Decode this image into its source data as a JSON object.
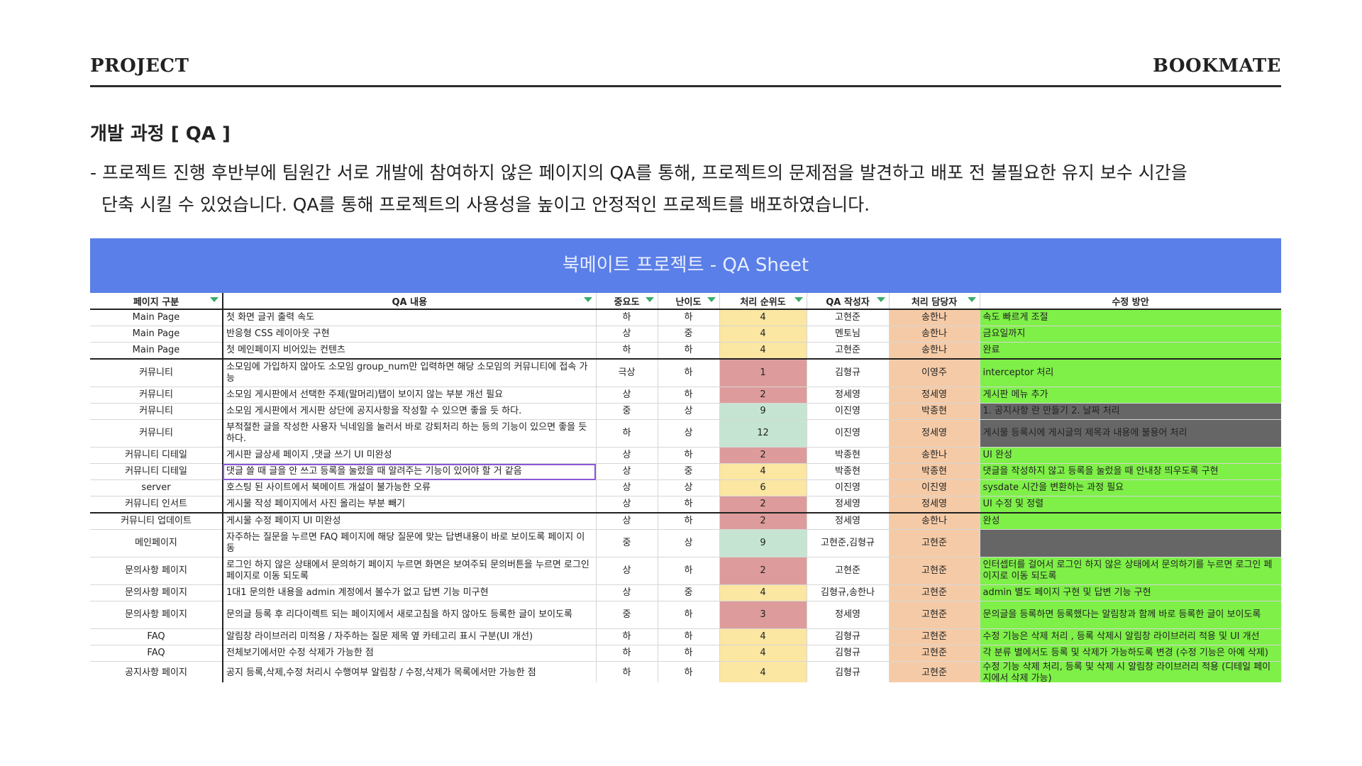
{
  "header": {
    "left": "PROJECT",
    "right": "BOOKMATE"
  },
  "section": {
    "title": "개발 과정 [ QA ]",
    "desc_line1": "- 프로젝트 진행 후반부에 팀원간 서로 개발에 참여하지 않은 페이지의 QA를 통해, 프로젝트의 문제점을 발견하고 배포 전 불필요한 유지 보수 시간을",
    "desc_line2": "단축 시킬 수 있었습니다. QA를 통해 프로젝트의 사용성을 높이고 안정적인 프로젝트를 배포하였습니다."
  },
  "sheet": {
    "title": "북메이트 프로젝트 - QA Sheet",
    "columns": [
      "페이지 구분",
      "QA 내용",
      "중요도",
      "난이도",
      "처리 순위도",
      "QA 작성자",
      "처리 담당자",
      "수정 방안"
    ],
    "colors": {
      "banner": "#5b7fe8",
      "priority_red": "#dd9c9b",
      "priority_yellow": "#fbe6a2",
      "priority_mint": "#c5e5d2",
      "owner": "#f5cba7",
      "fix_green": "#7ef048",
      "fix_dark": "#666666",
      "filter_icon": "#3bab6a",
      "selection": "#8a57d6"
    },
    "rows": [
      {
        "page": "Main Page",
        "content": "첫 화면 글귀 출력 속도",
        "importance": "하",
        "difficulty": "하",
        "priority": "4",
        "pcolor": "yel",
        "author": "고현준",
        "owner": "송한나",
        "fix": "속도 빠르게 조절",
        "fcolor": "g",
        "tall": false,
        "sep": false
      },
      {
        "page": "Main Page",
        "content": "반응형 CSS 레이아웃 구현",
        "importance": "상",
        "difficulty": "중",
        "priority": "4",
        "pcolor": "yel",
        "author": "멘토님",
        "owner": "송한나",
        "fix": "금요일까지",
        "fcolor": "g",
        "tall": false,
        "sep": false
      },
      {
        "page": "Main Page",
        "content": "첫 메인페이지 비어있는 컨텐츠",
        "importance": "하",
        "difficulty": "하",
        "priority": "4",
        "pcolor": "yel",
        "author": "고현준",
        "owner": "송한나",
        "fix": "완료",
        "fcolor": "g",
        "tall": false,
        "sep": false
      },
      {
        "page": "커뮤니티",
        "content": "소모임에 가입하지 않아도 소모임 group_num만 입력하면 해당 소모임의 커뮤니티에 접속 가능",
        "importance": "극상",
        "difficulty": "하",
        "priority": "1",
        "pcolor": "red",
        "author": "김형규",
        "owner": "이영주",
        "fix": "interceptor 처리",
        "fcolor": "g",
        "tall": true,
        "sep": true
      },
      {
        "page": "커뮤니티",
        "content": "소모임 게시판에서 선택한 주제(말머리)탭이 보이지 않는 부분 개선 필요",
        "importance": "상",
        "difficulty": "하",
        "priority": "2",
        "pcolor": "red",
        "author": "정세영",
        "owner": "정세영",
        "fix": "게시판 메뉴 추가",
        "fcolor": "g",
        "tall": false,
        "sep": false
      },
      {
        "page": "커뮤니티",
        "content": "소모임 게시판에서 게시판 상단에 공지사항을 작성할 수 있으면 좋을 듯 하다.",
        "importance": "중",
        "difficulty": "상",
        "priority": "9",
        "pcolor": "mint",
        "author": "이진영",
        "owner": "박종현",
        "fix": "1. 공지사항 란 만들기 2. 날짜 처리",
        "fcolor": "d",
        "tall": false,
        "sep": false
      },
      {
        "page": "커뮤니티",
        "content": "부적절한 글을 작성한 사용자 닉네임을 눌러서 바로 강퇴처리 하는 등의 기능이 있으면 좋을 듯 하다.",
        "importance": "하",
        "difficulty": "상",
        "priority": "12",
        "pcolor": "mint",
        "author": "이진영",
        "owner": "정세영",
        "fix": "게시물 등록시에 게시글의 제목과 내용에 불용어 처리",
        "fcolor": "d",
        "tall": true,
        "sep": false
      },
      {
        "page": "커뮤니티 디테일",
        "content": "게시판 글상세 페이지 ,댓글 쓰기 UI 미완성",
        "importance": "상",
        "difficulty": "하",
        "priority": "2",
        "pcolor": "red",
        "author": "박종현",
        "owner": "송한나",
        "fix": "UI 완성",
        "fcolor": "g",
        "tall": false,
        "sep": false
      },
      {
        "page": "커뮤니티 디테일",
        "content": "댓글 쓸 때 글을 안 쓰고 등록을 눌렀을 때 알려주는 기능이 있어야 할 거 같음",
        "importance": "상",
        "difficulty": "중",
        "priority": "4",
        "pcolor": "yel",
        "author": "박종현",
        "owner": "박종현",
        "fix": "댓글을 작성하지 않고 등록을 눌렀을 때 안내창 띄우도록 구현",
        "fcolor": "g",
        "tall": false,
        "sep": false,
        "selected": true
      },
      {
        "page": "server",
        "content": "호스팅 된 사이트에서 북메이트 개설이 불가능한 오류",
        "importance": "상",
        "difficulty": "상",
        "priority": "6",
        "pcolor": "yel",
        "author": "이진영",
        "owner": "이진영",
        "fix": "sysdate 시간을 변환하는 과정 필요",
        "fcolor": "g",
        "tall": false,
        "sep": false
      },
      {
        "page": "커뮤니티 인서트",
        "content": "게시물 작성 페이지에서 사진 올리는 부분 빼기",
        "importance": "상",
        "difficulty": "하",
        "priority": "2",
        "pcolor": "red",
        "author": "정세영",
        "owner": "정세영",
        "fix": "UI 수정 및 정렬",
        "fcolor": "g",
        "tall": false,
        "sep": false
      },
      {
        "page": "커뮤니티 업데이트",
        "content": "게시물 수정 페이지 UI 미완성",
        "importance": "상",
        "difficulty": "하",
        "priority": "2",
        "pcolor": "red",
        "author": "정세영",
        "owner": "송한나",
        "fix": "완성",
        "fcolor": "g",
        "tall": false,
        "sep": true
      },
      {
        "page": "메인페이지",
        "content": "자주하는 질문을 누르면 FAQ 페이지에 해당 질문에 맞는 답변내용이 바로 보이도록 페이지 이동",
        "importance": "중",
        "difficulty": "상",
        "priority": "9",
        "pcolor": "mint",
        "author": "고현준,김형규",
        "owner": "고현준",
        "fix": "",
        "fcolor": "d",
        "tall": true,
        "sep": false
      },
      {
        "page": "문의사항 페이지",
        "content": "로그인 하지 않은 상태에서 문의하기 페이지 누르면 화면은 보여주되 문의버튼을 누르면 로그인 페이지로 이동 되도록",
        "importance": "상",
        "difficulty": "하",
        "priority": "2",
        "pcolor": "red",
        "author": "고현준",
        "owner": "고현준",
        "fix": "인터셉터를 걸어서 로그인 하지 않은 상태에서 문의하기를 누르면 로그인 페이지로 이동 되도록",
        "fcolor": "g",
        "tall": true,
        "sep": false
      },
      {
        "page": "문의사항 페이지",
        "content": "1대1 문의한 내용을 admin 계정에서 볼수가 없고 답변 기능 미구현",
        "importance": "상",
        "difficulty": "중",
        "priority": "4",
        "pcolor": "yel",
        "author": "김형규,송한나",
        "owner": "고현준",
        "fix": "admin 별도 페이지 구현 및 답변 기능 구현",
        "fcolor": "g",
        "tall": false,
        "sep": false
      },
      {
        "page": "문의사항 페이지",
        "content": "문의글 등록 후 리다이렉트 되는 페이지에서 새로고침을 하지 않아도 등록한 글이 보이도록",
        "importance": "중",
        "difficulty": "하",
        "priority": "3",
        "pcolor": "red",
        "author": "정세영",
        "owner": "고현준",
        "fix": "문의글을 등록하면 등록했다는 알림창과 함께 바로 등록한 글이 보이도록",
        "fcolor": "g",
        "tall": true,
        "sep": false
      },
      {
        "page": "FAQ",
        "content": "알림창 라이브러리 미적용 / 자주하는 질문 제목 옆 카테고리 표시 구분(UI 개선)",
        "importance": "하",
        "difficulty": "하",
        "priority": "4",
        "pcolor": "yel",
        "author": "김형규",
        "owner": "고현준",
        "fix": "수정 기능은 삭제 처리 , 등록 삭제시 알림창 라이브러리 적용 및 UI 개선",
        "fcolor": "g",
        "tall": false,
        "sep": false
      },
      {
        "page": "FAQ",
        "content": "전체보기에서만 수정 삭제가 가능한 점",
        "importance": "하",
        "difficulty": "하",
        "priority": "4",
        "pcolor": "yel",
        "author": "김형규",
        "owner": "고현준",
        "fix": "각 분류 별에서도 등록 및 삭제가 가능하도록 변경 (수정 기능은 아예 삭제)",
        "fcolor": "g",
        "tall": false,
        "sep": false
      },
      {
        "page": "공지사항 페이지",
        "content": "공지 등록,삭제,수정 처리시 수행여부 알림창 / 수정,삭제가 목록에서만 가능한 점",
        "importance": "하",
        "difficulty": "하",
        "priority": "4",
        "pcolor": "yel",
        "author": "김형규",
        "owner": "고현준",
        "fix": "수정 기능 삭제 처리, 등록 및 삭제 시 알림창 라이브러리 적용 (디테일 페이지에서 삭제 가능)",
        "fcolor": "g",
        "tall": false,
        "sep": false
      }
    ]
  }
}
